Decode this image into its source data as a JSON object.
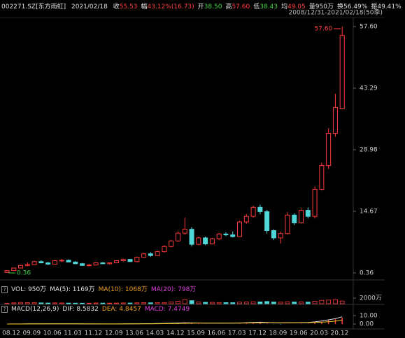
{
  "header": {
    "code": "002271.SZ[东方雨虹]",
    "date": "2021/02/18",
    "items": [
      {
        "label": "收",
        "value": "55.53",
        "color": "#ff4040"
      },
      {
        "label": "幅",
        "value": "43.12%(16.73)",
        "color": "#ff4040"
      },
      {
        "label": "开",
        "value": "38.50",
        "color": "#40d040"
      },
      {
        "label": "高",
        "value": "57.60",
        "color": "#ff4040"
      },
      {
        "label": "低",
        "value": "38.43",
        "color": "#40d040"
      },
      {
        "label": "均",
        "value": "49.05",
        "color": "#ff4040"
      },
      {
        "label": "量",
        "value": "950万",
        "color": "#e0e0e0"
      },
      {
        "label": "换",
        "value": "56.49%",
        "color": "#e0e0e0"
      },
      {
        "label": "振",
        "value": "49.41%",
        "color": "#e0e0e0"
      }
    ],
    "range": "2008/12/31-2021/02/18(50季)"
  },
  "chart_data": [
    {
      "type": "candlestick",
      "categories": [
        "08.12",
        null,
        null,
        "09.09",
        null,
        null,
        "10.06",
        null,
        null,
        "11.03",
        null,
        null,
        "11.12",
        null,
        null,
        "12.09",
        null,
        null,
        "13.06",
        null,
        null,
        "14.03",
        null,
        null,
        "14.12",
        null,
        null,
        "15.09",
        null,
        null,
        "16.06",
        null,
        null,
        "17.03",
        null,
        null,
        "17.12",
        null,
        null,
        "18.09",
        null,
        null,
        "19.06",
        null,
        null,
        "20.03",
        null,
        null,
        "20.12",
        null
      ],
      "open": [
        0.5,
        0.9,
        1.5,
        2.1,
        2.3,
        3.0,
        2.7,
        2.4,
        3.2,
        3.3,
        2.9,
        2.5,
        2.1,
        2.2,
        2.7,
        2.5,
        2.7,
        3.2,
        3.5,
        3.0,
        4.0,
        4.8,
        4.4,
        5.3,
        6.5,
        7.8,
        9.6,
        10.5,
        7.0,
        8.5,
        7.1,
        8.3,
        9.4,
        9.2,
        8.8,
        12.2,
        13.5,
        15.6,
        14.6,
        10.2,
        8.5,
        9.5,
        13.8,
        12.0,
        14.9,
        13.5,
        19.8,
        25.3,
        32.8,
        38.5
      ],
      "high": [
        1.0,
        1.6,
        2.2,
        2.8,
        3.2,
        3.3,
        2.9,
        3.4,
        3.6,
        3.5,
        3.1,
        2.7,
        2.4,
        2.8,
        2.9,
        2.8,
        3.3,
        3.7,
        3.6,
        4.2,
        5.0,
        5.2,
        5.5,
        6.8,
        8.0,
        10.0,
        13.2,
        11.0,
        8.8,
        8.8,
        8.5,
        9.6,
        9.8,
        10.0,
        12.5,
        14.0,
        16.0,
        16.2,
        15.0,
        10.5,
        10.0,
        14.5,
        14.2,
        15.3,
        15.6,
        20.5,
        26.0,
        34.0,
        42.0,
        57.6
      ],
      "low": [
        0.36,
        0.85,
        1.4,
        1.9,
        2.2,
        2.6,
        2.2,
        2.3,
        2.9,
        2.8,
        2.4,
        2.0,
        1.9,
        2.1,
        2.4,
        2.3,
        2.6,
        3.0,
        2.9,
        2.9,
        3.9,
        4.1,
        4.3,
        5.1,
        6.3,
        7.6,
        9.2,
        6.5,
        6.8,
        6.8,
        7.0,
        8.0,
        8.9,
        8.6,
        8.7,
        11.8,
        13.2,
        14.0,
        9.5,
        8.0,
        7.2,
        9.3,
        11.5,
        11.8,
        13.0,
        13.0,
        19.5,
        24.5,
        32.0,
        38.43
      ],
      "close": [
        0.9,
        1.5,
        2.1,
        2.3,
        3.0,
        2.7,
        2.4,
        3.2,
        3.3,
        2.9,
        2.5,
        2.1,
        2.2,
        2.7,
        2.5,
        2.7,
        3.2,
        3.5,
        3.0,
        4.0,
        4.8,
        4.4,
        5.3,
        6.5,
        7.8,
        9.6,
        10.5,
        7.0,
        8.5,
        7.1,
        8.3,
        9.4,
        9.2,
        8.8,
        12.2,
        13.5,
        15.6,
        14.6,
        10.2,
        8.5,
        9.5,
        13.8,
        12.0,
        14.9,
        13.5,
        19.8,
        25.3,
        32.8,
        38.8,
        55.53
      ],
      "ylim": [
        0.36,
        57.6
      ],
      "yticks": [
        {
          "value": 57.6,
          "label": "57.60"
        },
        43.29,
        28.98,
        14.67,
        0.36
      ],
      "up_color": "#ff3a3a",
      "down_color": "#4fd6d6",
      "annotations": [
        {
          "text": "57.60",
          "color": "#ff4040"
        },
        {
          "text": "0.36",
          "color": "#40d040"
        }
      ]
    },
    {
      "type": "bar",
      "legend": [
        {
          "text": "VOL: 950万",
          "color": "#e0e0e0"
        },
        {
          "text": "MA(5): 1169万",
          "color": "#e0e0e0"
        },
        {
          "text": "MA(10): 1068万",
          "color": "#f0a020"
        },
        {
          "text": "MA(20): 798万",
          "color": "#e040e0"
        }
      ],
      "values": [
        120,
        300,
        450,
        380,
        420,
        300,
        250,
        280,
        260,
        220,
        200,
        180,
        190,
        260,
        220,
        200,
        240,
        280,
        240,
        320,
        400,
        330,
        360,
        420,
        600,
        900,
        1500,
        1100,
        600,
        500,
        480,
        420,
        400,
        380,
        560,
        620,
        700,
        650,
        800,
        600,
        540,
        700,
        600,
        640,
        560,
        900,
        1200,
        1300,
        1400,
        950
      ],
      "ylim": [
        0,
        2000
      ],
      "yticks": [
        {
          "value": 2000,
          "label": "2000万"
        }
      ]
    },
    {
      "type": "macd",
      "legend": [
        {
          "text": "MACD(12,26,9)",
          "color": "#e0e0e0"
        },
        {
          "text": "DIF: 8.5832",
          "color": "#e0e0e0"
        },
        {
          "text": "DEA: 4.8457",
          "color": "#f0a020"
        },
        {
          "text": "MACD: 7.4749",
          "color": "#e040e0"
        }
      ],
      "dif": [
        0,
        0.05,
        0.1,
        0.15,
        0.2,
        0.22,
        0.2,
        0.22,
        0.24,
        0.22,
        0.18,
        0.12,
        0.08,
        0.08,
        0.07,
        0.08,
        0.12,
        0.17,
        0.18,
        0.27,
        0.4,
        0.45,
        0.55,
        0.72,
        0.95,
        1.25,
        1.5,
        1.3,
        1.25,
        1.1,
        1.05,
        1.1,
        1.1,
        1.0,
        1.25,
        1.55,
        1.95,
        2.15,
        1.85,
        1.45,
        1.25,
        1.55,
        1.55,
        1.75,
        1.8,
        2.55,
        3.6,
        5.0,
        6.3,
        8.5832
      ],
      "dea": [
        0,
        0.01,
        0.03,
        0.05,
        0.08,
        0.11,
        0.13,
        0.15,
        0.17,
        0.18,
        0.18,
        0.17,
        0.15,
        0.14,
        0.12,
        0.11,
        0.11,
        0.12,
        0.13,
        0.16,
        0.2,
        0.25,
        0.31,
        0.39,
        0.5,
        0.65,
        0.82,
        0.92,
        1.0,
        1.02,
        1.03,
        1.05,
        1.06,
        1.05,
        1.09,
        1.18,
        1.33,
        1.5,
        1.57,
        1.55,
        1.49,
        1.5,
        1.51,
        1.56,
        1.61,
        1.81,
        2.17,
        2.74,
        3.45,
        4.8457
      ],
      "macd": [
        0,
        0.08,
        0.14,
        0.2,
        0.24,
        0.22,
        0.14,
        0.14,
        0.14,
        0.08,
        0,
        -0.1,
        -0.14,
        -0.12,
        -0.1,
        -0.06,
        0.02,
        0.1,
        0.1,
        0.22,
        0.4,
        0.4,
        0.48,
        0.66,
        0.9,
        1.2,
        1.36,
        0.76,
        0.5,
        0.16,
        0.04,
        0.1,
        0.08,
        -0.1,
        0.32,
        0.74,
        1.24,
        1.3,
        0.56,
        -0.2,
        -0.48,
        0.1,
        0.08,
        0.38,
        0.38,
        1.48,
        2.86,
        4.52,
        5.7,
        7.4749
      ],
      "ylim": [
        -5,
        15
      ],
      "yticks": [
        {
          "value": 10,
          "label": "10.00"
        },
        {
          "value": 0,
          "label": "0.00"
        }
      ],
      "dif_color": "#e0e0e0",
      "dea_color": "#f0c020",
      "up_color": "#ff3a3a",
      "down_color": "#4fd6d6"
    }
  ]
}
